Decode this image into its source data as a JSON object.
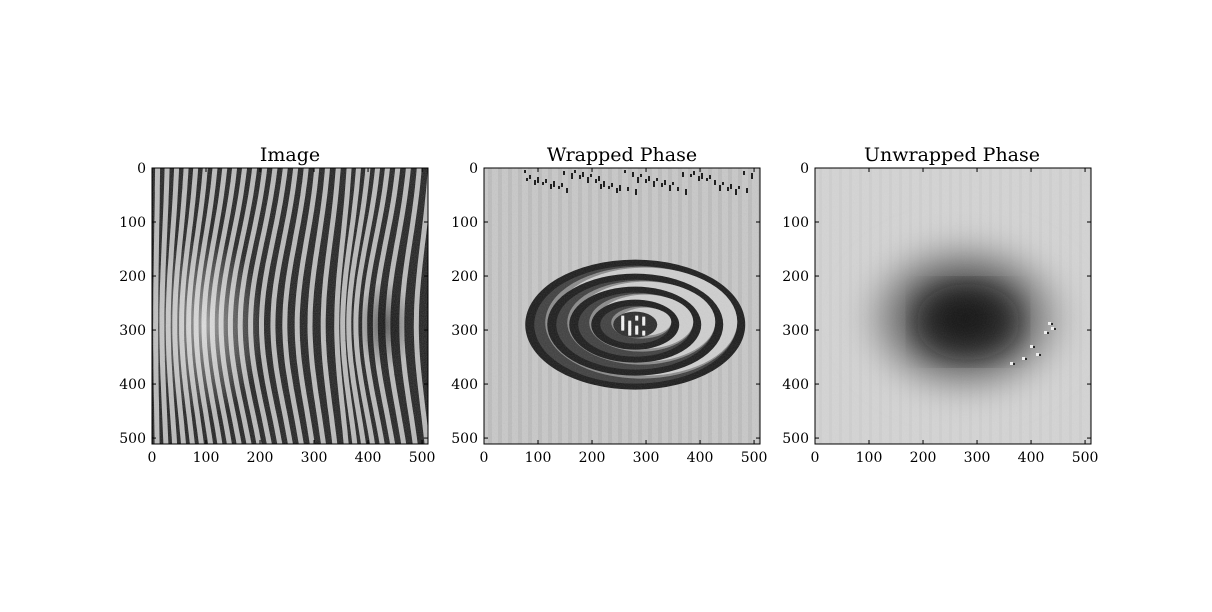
{
  "chart_data": [
    {
      "type": "heatmap",
      "title": "Image",
      "colormap": "gray",
      "content": "vertical interference fringes, bowing outward (leftward) around row 290; dark eye-shaped region near column 390",
      "xticks": [
        "0",
        "100",
        "200",
        "300",
        "400",
        "500"
      ],
      "yticks": [
        "0",
        "100",
        "200",
        "300",
        "400",
        "500"
      ],
      "xlim": [
        0,
        511
      ],
      "ylim": [
        511,
        0
      ],
      "grid": false,
      "legend": "none"
    },
    {
      "type": "heatmap",
      "title": "Wrapped Phase",
      "colormap": "gray",
      "content": "concentric elliptical wrapped-phase rings centered near (280, 290) over light noisy background",
      "xticks": [
        "0",
        "100",
        "200",
        "300",
        "400",
        "500"
      ],
      "yticks": [
        "0",
        "100",
        "200",
        "300",
        "400",
        "500"
      ],
      "xlim": [
        0,
        511
      ],
      "ylim": [
        511,
        0
      ],
      "grid": false,
      "legend": "none"
    },
    {
      "type": "heatmap",
      "title": "Unwrapped Phase",
      "colormap": "gray",
      "content": "smooth dark elliptical depression centered near (280, 290) on a light gray background",
      "xticks": [
        "0",
        "100",
        "200",
        "300",
        "400",
        "500"
      ],
      "yticks": [
        "0",
        "100",
        "200",
        "300",
        "400",
        "500"
      ],
      "xlim": [
        0,
        511
      ],
      "ylim": [
        511,
        0
      ],
      "grid": false,
      "legend": "none"
    }
  ]
}
